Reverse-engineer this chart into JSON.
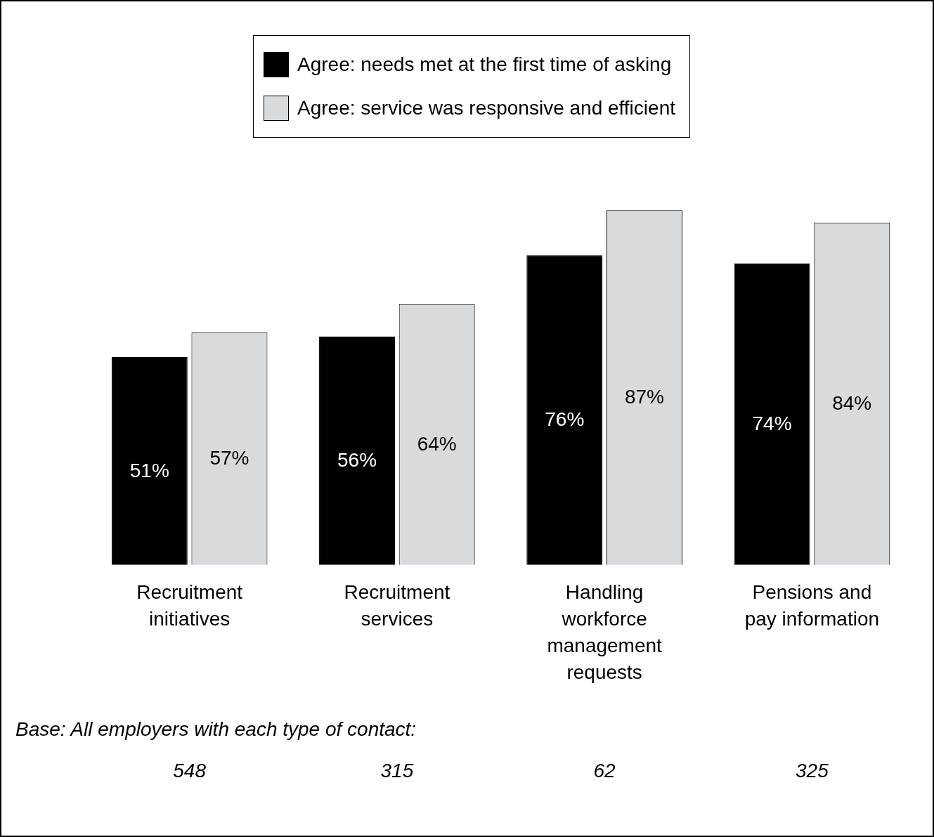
{
  "chart_data": {
    "type": "bar",
    "categories": [
      "Recruitment initiatives",
      "Recruitment services",
      "Handling workforce management requests",
      "Pensions and pay information"
    ],
    "series": [
      {
        "name": "Agree: needs met at the first time of asking",
        "color": "#000000",
        "values": [
          51,
          56,
          76,
          74
        ],
        "value_labels": [
          "51%",
          "56%",
          "76%",
          "74%"
        ]
      },
      {
        "name": "Agree: service was responsive and efficient",
        "color": "#d9dadc",
        "values": [
          57,
          64,
          87,
          84
        ],
        "value_labels": [
          "57%",
          "64%",
          "87%",
          "84%"
        ]
      }
    ],
    "tick_labels": "x",
    "grid": false,
    "legend": "top",
    "annotations": [
      "Base: All employers with each type of contact:",
      "548",
      "315",
      "62",
      "325"
    ]
  }
}
